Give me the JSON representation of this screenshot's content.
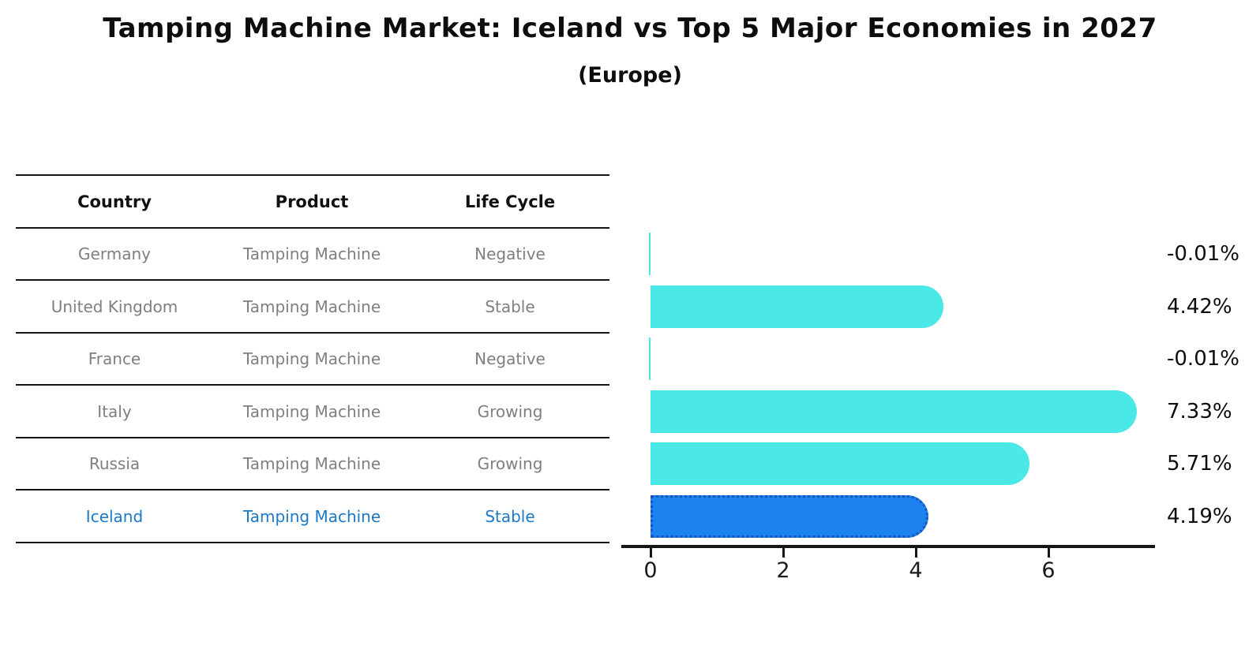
{
  "title": "Tamping Machine Market: Iceland vs Top 5 Major Economies in 2027",
  "subtitle": "(Europe)",
  "table": {
    "headers": [
      "Country",
      "Product",
      "Life Cycle"
    ],
    "rows": [
      {
        "country": "Germany",
        "product": "Tamping Machine",
        "life_cycle": "Negative"
      },
      {
        "country": "United Kingdom",
        "product": "Tamping Machine",
        "life_cycle": "Stable"
      },
      {
        "country": "France",
        "product": "Tamping Machine",
        "life_cycle": "Negative"
      },
      {
        "country": "Italy",
        "product": "Tamping Machine",
        "life_cycle": "Growing"
      },
      {
        "country": "Russia",
        "product": "Tamping Machine",
        "life_cycle": "Growing"
      },
      {
        "country": "Iceland",
        "product": "Tamping Machine",
        "life_cycle": "Stable"
      }
    ],
    "highlight_row": "Iceland"
  },
  "chart_data": {
    "type": "bar",
    "orientation": "horizontal",
    "categories": [
      "Germany",
      "United Kingdom",
      "France",
      "Italy",
      "Russia",
      "Iceland"
    ],
    "values": [
      -0.01,
      4.42,
      -0.01,
      7.33,
      5.71,
      4.19
    ],
    "value_labels": [
      "-0.01%",
      "4.42%",
      "-0.01%",
      "7.33%",
      "5.71%",
      "4.19%"
    ],
    "xticks": [
      "0",
      "2",
      "4",
      "6"
    ],
    "xtick_values": [
      0,
      2,
      4,
      6
    ],
    "xlim": [
      -0.45,
      7.6
    ],
    "grid": false,
    "legend": false,
    "bar_color": "#4AE8E6",
    "highlight_index": 5,
    "highlight_color": "#1B82F0",
    "highlight_border_color": "#1A55B8"
  },
  "colors": {
    "background": "#ffffff",
    "table_text": "#7f7f7f",
    "header_text": "#111111",
    "highlight_text": "#1c78c8",
    "axis": "#161616",
    "title_text": "#0d0d0d"
  }
}
